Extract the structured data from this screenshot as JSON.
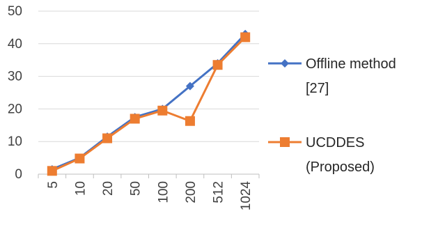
{
  "chart_data": {
    "type": "line",
    "title": "",
    "xlabel": "",
    "ylabel": "",
    "categories": [
      "5",
      "10",
      "20",
      "50",
      "100",
      "200",
      "512",
      "1024"
    ],
    "ylim": [
      0,
      50
    ],
    "yticks": [
      0,
      10,
      20,
      30,
      40,
      50
    ],
    "grid": "horizontal",
    "legend": "right",
    "series": [
      {
        "name": "Offline method [27]",
        "legend_lines": [
          "Offline method",
          "[27]"
        ],
        "color": "#4472C4",
        "marker": "diamond",
        "values": [
          1.5,
          5,
          11.5,
          17.5,
          20,
          27,
          34,
          43
        ]
      },
      {
        "name": "UCDDES (Proposed)",
        "legend_lines": [
          "UCDDES",
          "(Proposed)"
        ],
        "color": "#ED7D31",
        "marker": "square",
        "values": [
          1,
          4.8,
          11,
          17,
          19.5,
          16.3,
          33.5,
          42
        ]
      }
    ]
  }
}
